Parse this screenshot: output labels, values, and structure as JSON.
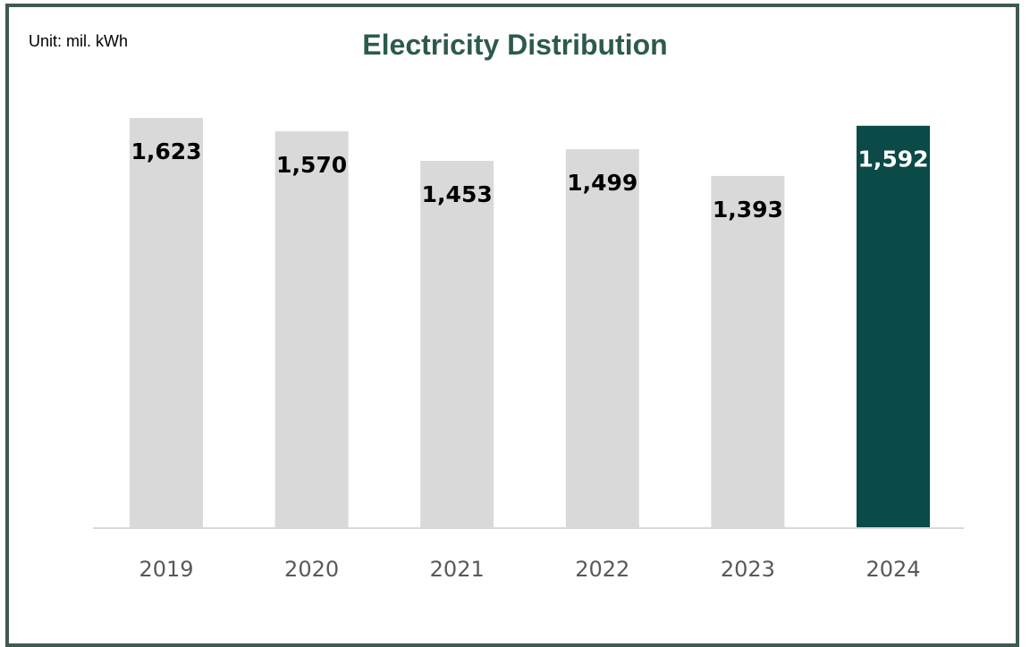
{
  "chart_data": {
    "type": "bar",
    "title": "Electricity Distribution",
    "unit_label": "Unit: mil. kWh",
    "categories": [
      "2019",
      "2020",
      "2021",
      "2022",
      "2023",
      "2024"
    ],
    "values": [
      1623,
      1570,
      1453,
      1499,
      1393,
      1592
    ],
    "value_labels": [
      "1,623",
      "1,570",
      "1,453",
      "1,499",
      "1,393",
      "1,592"
    ],
    "highlight_index": 5,
    "grid": false,
    "legend": "none",
    "colors": {
      "bar": "#d9d9d9",
      "highlight_bar": "#0b4a46",
      "label": "#000000",
      "highlight_label": "#ffffff",
      "title": "#2d5a4f",
      "border": "#3f5a52",
      "axis": "#d9d9d9"
    }
  }
}
